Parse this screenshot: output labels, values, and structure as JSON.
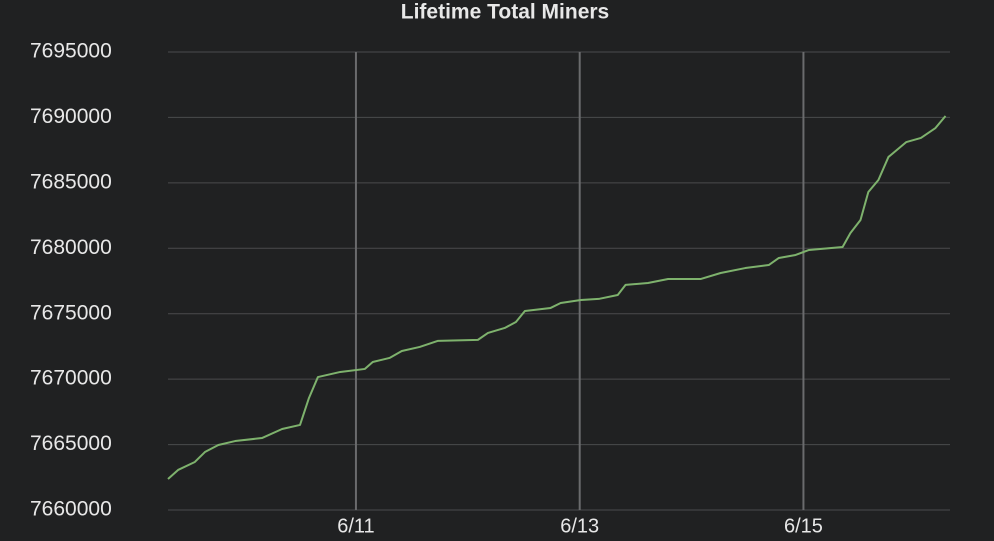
{
  "chart_data": {
    "type": "line",
    "title": "Lifetime Total Miners",
    "x": [
      9.32,
      9.41,
      9.56,
      9.65,
      9.77,
      9.92,
      10.16,
      10.34,
      10.5,
      10.58,
      10.66,
      10.86,
      11.08,
      11.15,
      11.3,
      11.41,
      11.57,
      11.73,
      12.09,
      12.18,
      12.33,
      12.43,
      12.51,
      12.74,
      12.83,
      13.01,
      13.17,
      13.34,
      13.41,
      13.61,
      13.79,
      14.08,
      14.26,
      14.48,
      14.69,
      14.78,
      14.93,
      15.05,
      15.35,
      15.42,
      15.51,
      15.58,
      15.67,
      15.76,
      15.92,
      16.05,
      16.18,
      16.27
    ],
    "series": [
      {
        "name": "Lifetime Total Miners",
        "color": "#7eb26d",
        "values": [
          7662370,
          7663060,
          7663670,
          7664430,
          7664970,
          7665270,
          7665500,
          7666190,
          7666500,
          7668560,
          7670160,
          7670550,
          7670780,
          7671310,
          7671620,
          7672150,
          7672460,
          7672920,
          7673000,
          7673530,
          7673910,
          7674370,
          7675210,
          7675440,
          7675820,
          7676050,
          7676130,
          7676430,
          7677200,
          7677350,
          7677650,
          7677650,
          7678110,
          7678490,
          7678720,
          7679260,
          7679490,
          7679870,
          7680100,
          7681170,
          7682160,
          7684300,
          7685220,
          7686980,
          7688120,
          7688430,
          7689190,
          7690110
        ]
      }
    ],
    "xlim": [
      9.32,
      16.31
    ],
    "xticks": [
      {
        "value": 11,
        "label": "6/11"
      },
      {
        "value": 13,
        "label": "6/13"
      },
      {
        "value": 15,
        "label": "6/15"
      }
    ],
    "ylim": [
      7660000,
      7695000
    ],
    "yticks": [
      7660000,
      7665000,
      7670000,
      7675000,
      7680000,
      7685000,
      7690000,
      7695000
    ],
    "grid": true
  }
}
